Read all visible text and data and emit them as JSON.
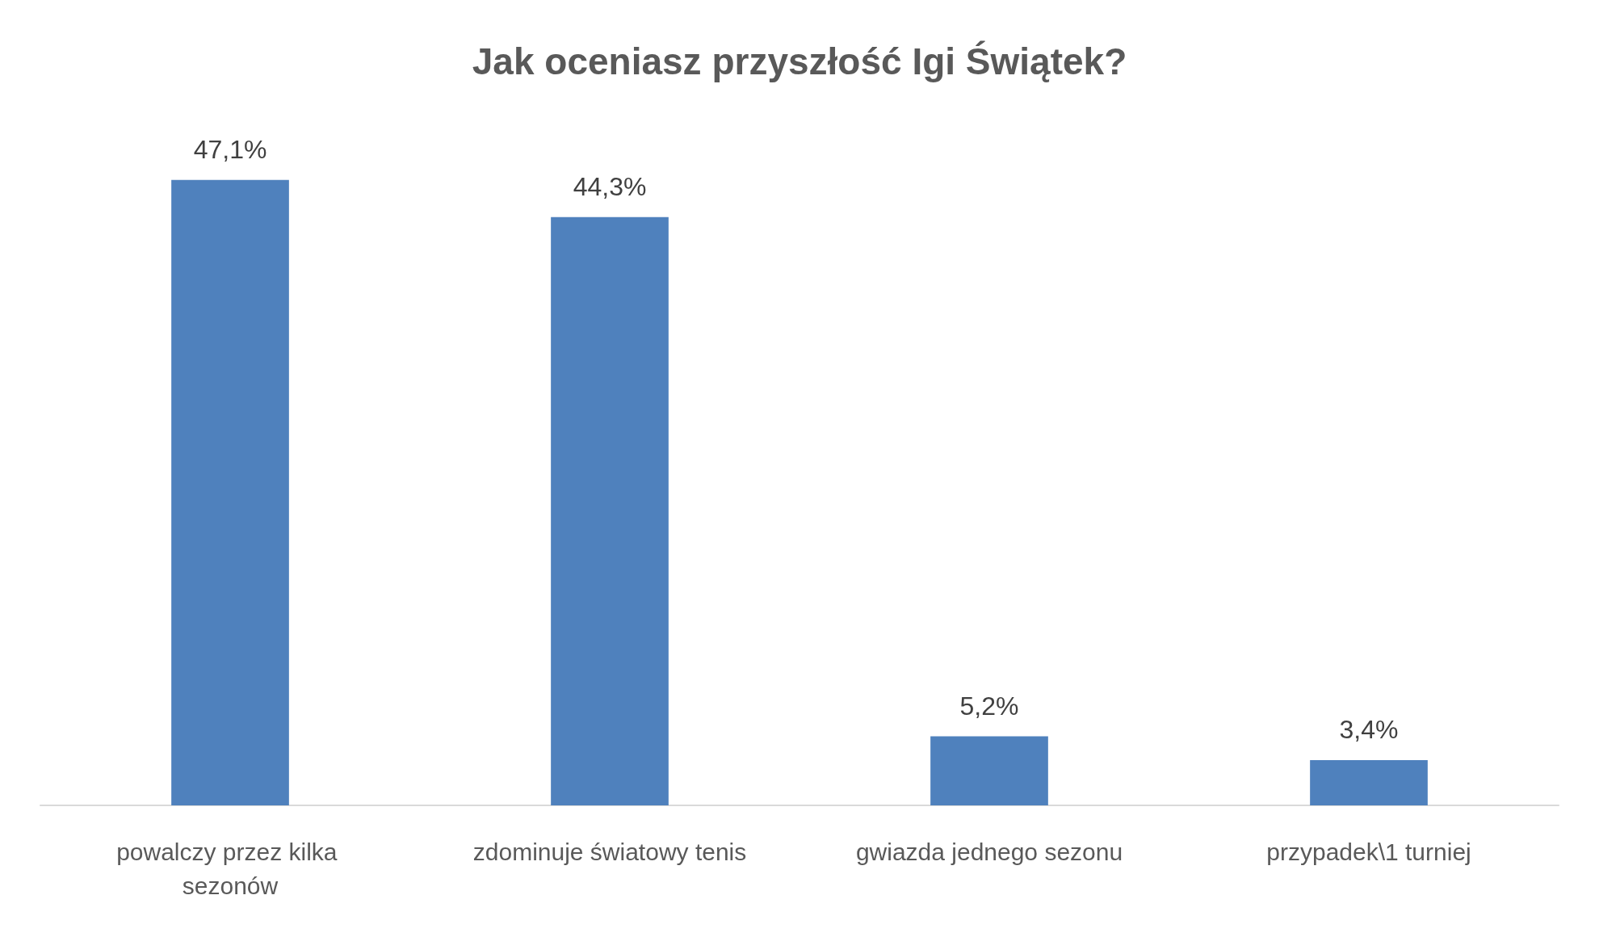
{
  "chart_data": {
    "type": "bar",
    "title": "Jak oceniasz przyszłość Igi Świątek?",
    "categories": [
      "powalczy przez kilka sezonów",
      "zdominuje światowy tenis",
      "gwiazda jednego sezonu",
      "przypadek\\1 turniej"
    ],
    "values": [
      47.1,
      44.3,
      5.2,
      3.4
    ],
    "value_labels": [
      "47,1%",
      "44,3%",
      "5,2%",
      "3,4%"
    ],
    "color": "#4f81bd"
  }
}
